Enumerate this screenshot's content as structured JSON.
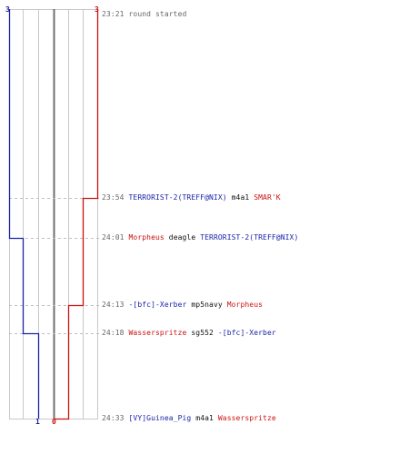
{
  "colors": {
    "team_blue": "#1a22a8",
    "team_red": "#cc1111",
    "text_gray": "#666666",
    "text_black": "#111111",
    "grid": "#c8c8c8",
    "guide": "#c0c0c0",
    "center": "#707070"
  },
  "header": {
    "blue_count": "3",
    "red_count": "3"
  },
  "footer": {
    "blue_count": "1",
    "red_count": "0"
  },
  "events": [
    {
      "time": "23:21",
      "type": "system",
      "text": "round started"
    },
    {
      "time": "23:54",
      "type": "kill",
      "killer": "TERRORIST-2(TREFF@NIX)",
      "killer_team": "blue",
      "weapon": "m4a1",
      "victim": "SMAR'K",
      "victim_team": "red",
      "blue_after": 3,
      "red_after": 2
    },
    {
      "time": "24:01",
      "type": "kill",
      "killer": "Morpheus",
      "killer_team": "red",
      "weapon": "deagle",
      "victim": "TERRORIST-2(TREFF@NIX)",
      "victim_team": "blue",
      "blue_after": 2,
      "red_after": 2
    },
    {
      "time": "24:13",
      "type": "kill",
      "killer": "-[bfc]-Xerber",
      "killer_team": "blue",
      "weapon": "mp5navy",
      "victim": "Morpheus",
      "victim_team": "red",
      "blue_after": 2,
      "red_after": 1
    },
    {
      "time": "24:18",
      "type": "kill",
      "killer": "Wasserspritze",
      "killer_team": "red",
      "weapon": "sg552",
      "victim": "-[bfc]-Xerber",
      "victim_team": "blue",
      "blue_after": 1,
      "red_after": 1
    },
    {
      "time": "24:33",
      "type": "kill",
      "killer": "[VY]Guinea_Pig",
      "killer_team": "blue",
      "weapon": "m4a1",
      "victim": "Wasserspritze",
      "victim_team": "red",
      "blue_after": 1,
      "red_after": 0
    }
  ]
}
